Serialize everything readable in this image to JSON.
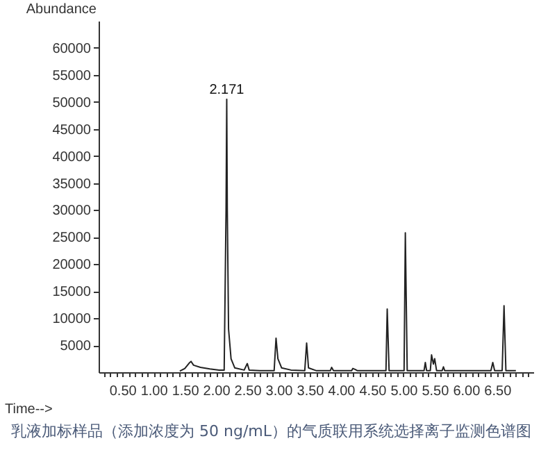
{
  "chart_data": {
    "type": "line",
    "xlabel": "Time-->",
    "ylabel": "Abundance",
    "annotations": [
      {
        "text": "2.171",
        "x": 2.171,
        "y": 50500
      },
      "乳液加标样品（添加浓度为 50 ng/mL）的气质联用系统选择离子监测色谱图"
    ],
    "grid": false,
    "xlim": [
      0.12,
      7.08
    ],
    "ylim": [
      0,
      65000
    ],
    "xticks": [
      {
        "value": 0.2,
        "label": null
      },
      {
        "value": 0.3,
        "label": null
      },
      {
        "value": 0.4,
        "label": null
      },
      {
        "value": 0.5,
        "label": "0.50"
      },
      {
        "value": 0.6,
        "label": null
      },
      {
        "value": 0.7,
        "label": null
      },
      {
        "value": 0.8,
        "label": null
      },
      {
        "value": 0.9,
        "label": null
      },
      {
        "value": 1.0,
        "label": "1.00"
      },
      {
        "value": 1.1,
        "label": null
      },
      {
        "value": 1.2,
        "label": null
      },
      {
        "value": 1.3,
        "label": null
      },
      {
        "value": 1.4,
        "label": null
      },
      {
        "value": 1.5,
        "label": "1.50"
      },
      {
        "value": 1.6,
        "label": null
      },
      {
        "value": 1.7,
        "label": null
      },
      {
        "value": 1.8,
        "label": null
      },
      {
        "value": 1.9,
        "label": null
      },
      {
        "value": 2.0,
        "label": "2.00"
      },
      {
        "value": 2.1,
        "label": null
      },
      {
        "value": 2.2,
        "label": null
      },
      {
        "value": 2.3,
        "label": null
      },
      {
        "value": 2.4,
        "label": null
      },
      {
        "value": 2.5,
        "label": "2.50"
      },
      {
        "value": 2.6,
        "label": null
      },
      {
        "value": 2.7,
        "label": null
      },
      {
        "value": 2.8,
        "label": null
      },
      {
        "value": 2.9,
        "label": null
      },
      {
        "value": 3.0,
        "label": "3.00"
      },
      {
        "value": 3.1,
        "label": null
      },
      {
        "value": 3.2,
        "label": null
      },
      {
        "value": 3.3,
        "label": null
      },
      {
        "value": 3.4,
        "label": null
      },
      {
        "value": 3.5,
        "label": "3.50"
      },
      {
        "value": 3.6,
        "label": null
      },
      {
        "value": 3.7,
        "label": null
      },
      {
        "value": 3.8,
        "label": null
      },
      {
        "value": 3.9,
        "label": null
      },
      {
        "value": 4.0,
        "label": "4.00"
      },
      {
        "value": 4.1,
        "label": null
      },
      {
        "value": 4.2,
        "label": null
      },
      {
        "value": 4.3,
        "label": null
      },
      {
        "value": 4.4,
        "label": null
      },
      {
        "value": 4.5,
        "label": "4.50"
      },
      {
        "value": 4.6,
        "label": null
      },
      {
        "value": 4.7,
        "label": null
      },
      {
        "value": 4.8,
        "label": null
      },
      {
        "value": 4.9,
        "label": null
      },
      {
        "value": 5.0,
        "label": "5.00"
      },
      {
        "value": 5.1,
        "label": null
      },
      {
        "value": 5.2,
        "label": null
      },
      {
        "value": 5.3,
        "label": null
      },
      {
        "value": 5.4,
        "label": null
      },
      {
        "value": 5.5,
        "label": "5.50"
      },
      {
        "value": 5.6,
        "label": null
      },
      {
        "value": 5.7,
        "label": null
      },
      {
        "value": 5.8,
        "label": null
      },
      {
        "value": 5.9,
        "label": null
      },
      {
        "value": 6.0,
        "label": "6.00"
      },
      {
        "value": 6.1,
        "label": null
      },
      {
        "value": 6.2,
        "label": null
      },
      {
        "value": 6.3,
        "label": null
      },
      {
        "value": 6.4,
        "label": null
      },
      {
        "value": 6.5,
        "label": "6.50"
      },
      {
        "value": 6.6,
        "label": null
      },
      {
        "value": 6.7,
        "label": null
      },
      {
        "value": 6.8,
        "label": null
      },
      {
        "value": 6.9,
        "label": null
      },
      {
        "value": 7.0,
        "label": null
      }
    ],
    "yticks": [
      5000,
      10000,
      15000,
      20000,
      25000,
      30000,
      35000,
      40000,
      45000,
      50000,
      55000,
      60000
    ],
    "x": [
      1.42,
      1.5,
      1.57,
      1.6,
      1.64,
      1.75,
      1.9,
      2.05,
      2.13,
      2.16,
      2.171,
      2.18,
      2.2,
      2.24,
      2.3,
      2.45,
      2.5,
      2.53,
      2.7,
      2.93,
      2.96,
      2.99,
      3.05,
      3.2,
      3.42,
      3.45,
      3.48,
      3.6,
      3.83,
      3.85,
      3.88,
      4.17,
      4.19,
      4.23,
      4.26,
      4.45,
      4.72,
      4.74,
      4.77,
      5.01,
      5.03,
      5.06,
      5.33,
      5.35,
      5.37,
      5.43,
      5.45,
      5.48,
      5.5,
      5.53,
      5.62,
      5.64,
      5.66,
      6.4,
      6.43,
      6.46,
      6.58,
      6.61,
      6.64,
      6.8
    ],
    "series": [
      {
        "color": "#222222",
        "type": "line",
        "values": [
          200,
          700,
          1700,
          2000,
          1300,
          900,
          600,
          400,
          400,
          30000,
          50500,
          30000,
          8000,
          2500,
          800,
          400,
          1600,
          400,
          300,
          300,
          6300,
          2500,
          800,
          400,
          300,
          5400,
          800,
          300,
          300,
          900,
          300,
          300,
          700,
          500,
          300,
          300,
          300,
          11700,
          300,
          300,
          25800,
          300,
          300,
          1800,
          300,
          300,
          3200,
          1500,
          2500,
          300,
          300,
          1000,
          300,
          300,
          1800,
          300,
          300,
          12300,
          300,
          300
        ]
      }
    ]
  }
}
